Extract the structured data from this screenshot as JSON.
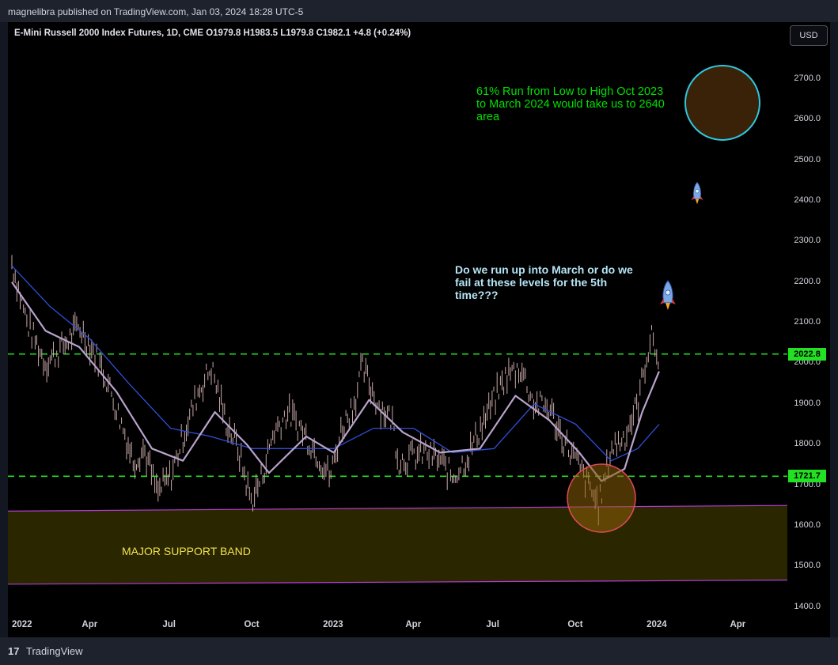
{
  "header": {
    "publisher": "magnelibra published on TradingView.com, Jan 03, 2024 18:28 UTC-5"
  },
  "symbol_bar": {
    "ohlc_text": "E-Mini Russell 2000 Index Futures, 1D, CME  O1979.8  H1983.5  L1979.8  C1982.1  +4.8 (+0.24%)",
    "currency": "USD"
  },
  "footer": {
    "brand": "TradingView",
    "logo": "17"
  },
  "annotations": {
    "run_note": "61% Run from Low to High Oct 2023 to March 2024 would take us to 2640 area",
    "question_note": "Do we run up into March or do we fail at these levels for the 5th time???",
    "support_label": "MAJOR SUPPORT BAND",
    "rocket_icon": "rocket-icon"
  },
  "colors": {
    "background": "#000000",
    "dashed_levels": "#22e022",
    "support_band": "#2a2700",
    "support_lines": "#b43cd4",
    "ma_fast": "#b9a3cc",
    "ma_slow": "#2f4fd8",
    "candles": "#c9a7a7",
    "orange_circle": "#e2495a",
    "target_circle": "#2ec8e0"
  },
  "chart_data": {
    "type": "line",
    "title": "E-Mini Russell 2000 Index Futures, 1D, CME",
    "xlabel": "",
    "ylabel": "",
    "x_ticks": [
      "2022",
      "Apr",
      "Jul",
      "Oct",
      "2023",
      "Apr",
      "Jul",
      "Oct",
      "2024",
      "Apr"
    ],
    "y_ticks": [
      1400.0,
      1500.0,
      1600.0,
      1700.0,
      1800.0,
      1900.0,
      2000.0,
      2100.0,
      2200.0,
      2300.0,
      2400.0,
      2500.0,
      2600.0,
      2700.0
    ],
    "y_tick_labels": [
      "1400.0",
      "1500.0",
      "1600.0",
      "1700.0",
      "1800.0",
      "1900.0",
      "2000.0",
      "2100.0",
      "2200.0",
      "2300.0",
      "2400.0",
      "2500.0",
      "2600.0",
      "2700.0"
    ],
    "ylim": [
      1360,
      2840
    ],
    "price_levels": [
      {
        "value": 2022.8,
        "label": "2022.8"
      },
      {
        "value": 1721.7,
        "label": "1721.7"
      }
    ],
    "support_band": {
      "upper": [
        1636,
        1650
      ],
      "lower": [
        1456,
        1466
      ]
    },
    "series": [
      {
        "name": "Price",
        "x": [
          "2022-01-03",
          "2022-01-20",
          "2022-02-10",
          "2022-03-01",
          "2022-03-20",
          "2022-04-05",
          "2022-04-20",
          "2022-05-10",
          "2022-05-20",
          "2022-06-01",
          "2022-06-16",
          "2022-07-01",
          "2022-07-15",
          "2022-08-01",
          "2022-08-16",
          "2022-09-01",
          "2022-09-15",
          "2022-09-30",
          "2022-10-12",
          "2022-10-25",
          "2022-11-10",
          "2022-11-25",
          "2022-12-10",
          "2022-12-28",
          "2023-01-10",
          "2023-01-25",
          "2023-02-02",
          "2023-02-20",
          "2023-03-08",
          "2023-03-15",
          "2023-03-30",
          "2023-04-15",
          "2023-05-01",
          "2023-05-15",
          "2023-06-01",
          "2023-06-15",
          "2023-07-01",
          "2023-07-15",
          "2023-07-31",
          "2023-08-15",
          "2023-09-01",
          "2023-09-15",
          "2023-10-01",
          "2023-10-15",
          "2023-10-27",
          "2023-11-10",
          "2023-11-25",
          "2023-12-10",
          "2023-12-20",
          "2023-12-27",
          "2024-01-03"
        ],
        "values": [
          2250,
          2100,
          2000,
          2040,
          2090,
          2030,
          1960,
          1830,
          1760,
          1790,
          1680,
          1720,
          1820,
          1930,
          1990,
          1860,
          1790,
          1660,
          1720,
          1830,
          1880,
          1840,
          1790,
          1720,
          1840,
          1910,
          1990,
          1900,
          1860,
          1760,
          1770,
          1780,
          1760,
          1720,
          1770,
          1840,
          1910,
          1970,
          1990,
          1900,
          1890,
          1820,
          1760,
          1700,
          1650,
          1790,
          1820,
          1900,
          2020,
          2070,
          1982
        ]
      },
      {
        "name": "MA fast",
        "x": [
          "2022-01-03",
          "2022-02-10",
          "2022-03-20",
          "2022-05-01",
          "2022-06-10",
          "2022-07-15",
          "2022-08-20",
          "2022-09-25",
          "2022-10-20",
          "2022-12-01",
          "2023-01-01",
          "2023-02-10",
          "2023-03-20",
          "2023-05-01",
          "2023-06-15",
          "2023-07-25",
          "2023-09-01",
          "2023-10-05",
          "2023-10-30",
          "2023-11-25",
          "2023-12-15",
          "2024-01-03"
        ],
        "values": [
          2200,
          2080,
          2040,
          1930,
          1790,
          1760,
          1880,
          1800,
          1730,
          1820,
          1780,
          1910,
          1830,
          1780,
          1790,
          1920,
          1860,
          1780,
          1710,
          1740,
          1880,
          1980
        ]
      },
      {
        "name": "MA slow",
        "x": [
          "2022-01-03",
          "2022-02-15",
          "2022-04-01",
          "2022-05-15",
          "2022-07-01",
          "2022-08-15",
          "2022-10-01",
          "2022-11-15",
          "2023-01-01",
          "2023-02-15",
          "2023-04-01",
          "2023-05-15",
          "2023-07-01",
          "2023-08-15",
          "2023-10-01",
          "2023-11-10",
          "2023-12-10",
          "2024-01-03"
        ],
        "values": [
          2240,
          2140,
          2060,
          1950,
          1840,
          1820,
          1790,
          1790,
          1790,
          1840,
          1840,
          1780,
          1790,
          1900,
          1850,
          1760,
          1790,
          1850
        ]
      }
    ],
    "grid": false,
    "legend": "none"
  }
}
